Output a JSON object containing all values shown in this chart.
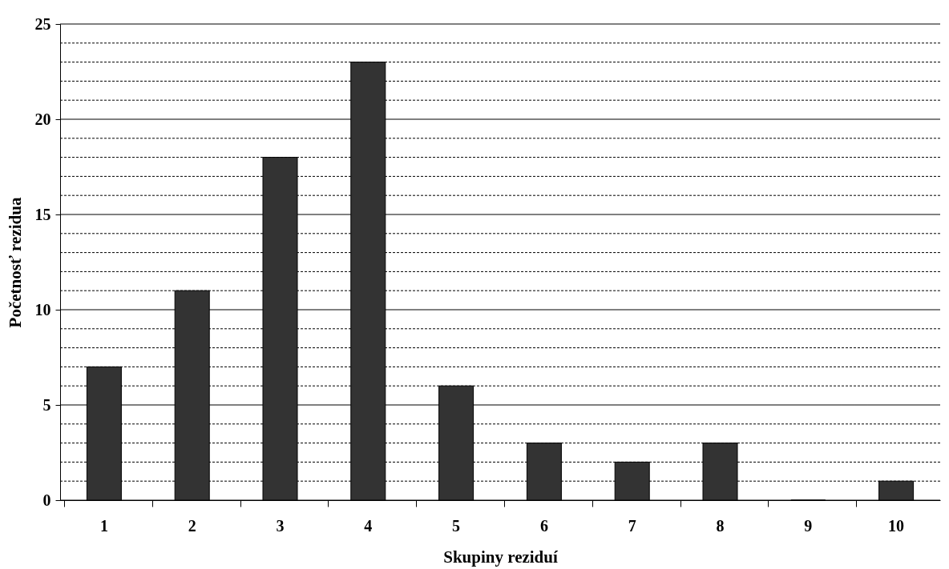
{
  "chart_data": {
    "type": "bar",
    "xlabel": "Skupiny reziduí",
    "ylabel": "Početnosť rezidua",
    "categories": [
      "1",
      "2",
      "3",
      "4",
      "5",
      "6",
      "7",
      "8",
      "9",
      "10"
    ],
    "series": [
      {
        "color": "#333333",
        "values": [
          7,
          11,
          18,
          23,
          6,
          3,
          2,
          3,
          0,
          1
        ]
      }
    ],
    "ylim": [
      0,
      25
    ],
    "yticks": [
      0,
      {
        "value": 1,
        "label": null
      },
      {
        "value": 2,
        "label": null
      },
      {
        "value": 3,
        "label": null
      },
      {
        "value": 4,
        "label": null
      },
      5,
      {
        "value": 6,
        "label": null
      },
      {
        "value": 7,
        "label": null
      },
      {
        "value": 8,
        "label": null
      },
      {
        "value": 9,
        "label": null
      },
      10,
      {
        "value": 11,
        "label": null
      },
      {
        "value": 12,
        "label": null
      },
      {
        "value": 13,
        "label": null
      },
      {
        "value": 14,
        "label": null
      },
      15,
      {
        "value": 16,
        "label": null
      },
      {
        "value": 17,
        "label": null
      },
      {
        "value": 18,
        "label": null
      },
      {
        "value": 19,
        "label": null
      },
      20,
      {
        "value": 21,
        "label": null
      },
      {
        "value": 22,
        "label": null
      },
      {
        "value": 23,
        "label": null
      },
      {
        "value": 24,
        "label": null
      },
      25
    ],
    "grid": "y"
  }
}
